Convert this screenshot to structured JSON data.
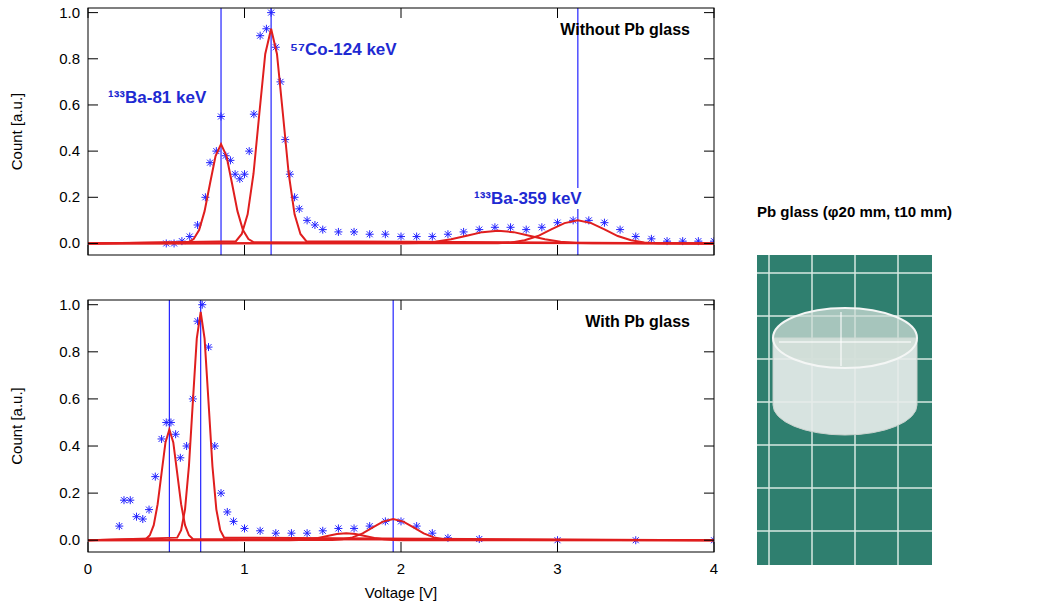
{
  "chart_data": [
    {
      "type": "scatter",
      "title": "Without Pb glass",
      "ylabel": "Count [a.u.]",
      "xlim": [
        0,
        4
      ],
      "ylim": [
        -0.05,
        1.02
      ],
      "xticks": [
        0,
        1,
        2,
        3,
        4
      ],
      "yticks": [
        {
          "value": 0,
          "label": "0.0"
        },
        {
          "value": 0.2,
          "label": "0.2"
        },
        {
          "value": 0.4,
          "label": "0.4"
        },
        {
          "value": 0.6,
          "label": "0.6"
        },
        {
          "value": 0.8,
          "label": "0.8"
        },
        {
          "value": 1,
          "label": "1.0"
        }
      ],
      "tick_labels": "y",
      "annotations": [
        "¹³³Ba-81 keV",
        "⁵⁷Co-124 keV",
        "¹³³Ba-359 keV"
      ],
      "vlines": [
        0.85,
        1.17,
        3.13
      ],
      "series": [
        {
          "type": "scatter",
          "marker": "asterisk",
          "color": "#2323ff",
          "x": [
            0.5,
            0.55,
            0.6,
            0.65,
            0.7,
            0.75,
            0.78,
            0.82,
            0.85,
            0.88,
            0.91,
            0.94,
            0.97,
            1.0,
            1.03,
            1.06,
            1.1,
            1.14,
            1.17,
            1.2,
            1.23,
            1.26,
            1.29,
            1.32,
            1.35,
            1.4,
            1.45,
            1.5,
            1.6,
            1.7,
            1.8,
            1.9,
            2.0,
            2.1,
            2.2,
            2.3,
            2.4,
            2.5,
            2.6,
            2.7,
            2.8,
            2.9,
            3.0,
            3.1,
            3.2,
            3.3,
            3.4,
            3.5,
            3.6,
            3.7,
            3.8,
            3.9,
            4.0
          ],
          "values": [
            0.0,
            0.0,
            0.01,
            0.03,
            0.08,
            0.2,
            0.35,
            0.4,
            0.55,
            0.38,
            0.36,
            0.3,
            0.28,
            0.3,
            0.4,
            0.56,
            0.9,
            0.93,
            1.0,
            0.85,
            0.7,
            0.45,
            0.3,
            0.2,
            0.15,
            0.1,
            0.08,
            0.06,
            0.05,
            0.05,
            0.04,
            0.04,
            0.03,
            0.03,
            0.03,
            0.04,
            0.05,
            0.06,
            0.07,
            0.07,
            0.06,
            0.07,
            0.09,
            0.1,
            0.1,
            0.09,
            0.06,
            0.03,
            0.02,
            0.01,
            0.01,
            0.01,
            0.01
          ]
        },
        {
          "type": "line",
          "line_style": "solid",
          "color": "#e01e1e",
          "x": [
            0,
            0.64,
            0.675,
            0.71,
            0.745,
            0.78,
            0.815,
            0.85,
            0.885,
            0.92,
            0.955,
            0.99,
            1.025,
            1.06,
            4
          ],
          "values": [
            0,
            0.005,
            0.019,
            0.058,
            0.14,
            0.261,
            0.379,
            0.43,
            0.379,
            0.261,
            0.14,
            0.058,
            0.019,
            0.005,
            0
          ]
        },
        {
          "type": "line",
          "line_style": "solid",
          "color": "#e01e1e",
          "x": [
            0,
            0.945,
            0.9825,
            1.02,
            1.0575,
            1.095,
            1.1325,
            1.17,
            1.2075,
            1.245,
            1.2825,
            1.32,
            1.3575,
            1.395,
            4
          ],
          "values": [
            0,
            0.01,
            0.041,
            0.126,
            0.302,
            0.564,
            0.821,
            0.93,
            0.821,
            0.564,
            0.302,
            0.126,
            0.041,
            0.01,
            0
          ]
        },
        {
          "type": "line",
          "line_style": "solid",
          "color": "#e01e1e",
          "x": [
            0,
            2.02,
            2.12,
            2.22,
            2.32,
            2.42,
            2.52,
            2.62,
            2.72,
            2.82,
            2.92,
            3.02,
            3.12,
            3.22,
            4
          ],
          "values": [
            0,
            0.001,
            0.002,
            0.007,
            0.018,
            0.033,
            0.049,
            0.055,
            0.049,
            0.033,
            0.018,
            0.007,
            0.002,
            0.001,
            0
          ]
        },
        {
          "type": "line",
          "line_style": "solid",
          "color": "#e01e1e",
          "x": [
            0,
            2.62,
            2.705,
            2.79,
            2.875,
            2.96,
            3.045,
            3.13,
            3.215,
            3.3,
            3.385,
            3.47,
            3.555,
            3.64,
            4
          ],
          "values": [
            0,
            0.001,
            0.004,
            0.014,
            0.032,
            0.061,
            0.088,
            0.1,
            0.088,
            0.061,
            0.032,
            0.014,
            0.004,
            0.001,
            0
          ]
        }
      ]
    },
    {
      "type": "scatter",
      "title": "With Pb glass",
      "xlabel": "Voltage [V]",
      "ylabel": "Count [a.u.]",
      "xlim": [
        0,
        4
      ],
      "ylim": [
        -0.05,
        1.02
      ],
      "xticks": [
        0,
        1,
        2,
        3,
        4
      ],
      "yticks": [
        {
          "value": 0,
          "label": "0.0"
        },
        {
          "value": 0.2,
          "label": "0.2"
        },
        {
          "value": 0.4,
          "label": "0.4"
        },
        {
          "value": 0.6,
          "label": "0.6"
        },
        {
          "value": 0.8,
          "label": "0.8"
        },
        {
          "value": 1,
          "label": "1.0"
        }
      ],
      "vlines": [
        0.52,
        0.72,
        1.95
      ],
      "series": [
        {
          "type": "scatter",
          "marker": "asterisk",
          "color": "#2323ff",
          "x": [
            0.2,
            0.23,
            0.27,
            0.31,
            0.35,
            0.39,
            0.43,
            0.47,
            0.5,
            0.53,
            0.56,
            0.59,
            0.63,
            0.67,
            0.7,
            0.73,
            0.77,
            0.81,
            0.85,
            0.89,
            0.93,
            1.0,
            1.1,
            1.2,
            1.3,
            1.4,
            1.5,
            1.6,
            1.7,
            1.8,
            1.9,
            2.0,
            2.1,
            2.2,
            2.3,
            2.5,
            3.0,
            3.5,
            4.0
          ],
          "values": [
            0.06,
            0.17,
            0.17,
            0.1,
            0.09,
            0.13,
            0.27,
            0.43,
            0.5,
            0.5,
            0.45,
            0.35,
            0.4,
            0.6,
            0.93,
            1.0,
            0.82,
            0.4,
            0.2,
            0.12,
            0.08,
            0.05,
            0.04,
            0.03,
            0.03,
            0.03,
            0.04,
            0.05,
            0.05,
            0.06,
            0.08,
            0.08,
            0.06,
            0.03,
            0.01,
            0.005,
            0.0,
            0.0,
            0.0
          ]
        },
        {
          "type": "line",
          "line_style": "solid",
          "color": "#e01e1e",
          "x": [
            0,
            0.37,
            0.395,
            0.42,
            0.445,
            0.47,
            0.495,
            0.52,
            0.545,
            0.57,
            0.595,
            0.62,
            0.645,
            0.67,
            4
          ],
          "values": [
            0,
            0.005,
            0.021,
            0.064,
            0.153,
            0.285,
            0.415,
            0.47,
            0.415,
            0.285,
            0.153,
            0.064,
            0.021,
            0.005,
            0
          ]
        },
        {
          "type": "line",
          "line_style": "solid",
          "color": "#e01e1e",
          "x": [
            0,
            0.57,
            0.595,
            0.62,
            0.645,
            0.67,
            0.695,
            0.72,
            0.745,
            0.77,
            0.795,
            0.82,
            0.845,
            0.87,
            4
          ],
          "values": [
            0,
            0.011,
            0.043,
            0.131,
            0.315,
            0.588,
            0.856,
            0.97,
            0.856,
            0.588,
            0.315,
            0.131,
            0.043,
            0.011,
            0
          ]
        },
        {
          "type": "line",
          "line_style": "solid",
          "color": "#e01e1e",
          "x": [
            0,
            1.29,
            1.35,
            1.41,
            1.47,
            1.53,
            1.59,
            1.65,
            1.71,
            1.77,
            1.83,
            1.89,
            1.95,
            2.01,
            4
          ],
          "values": [
            0,
            0,
            0.001,
            0.004,
            0.01,
            0.018,
            0.026,
            0.03,
            0.026,
            0.018,
            0.01,
            0.004,
            0.001,
            0,
            0
          ]
        },
        {
          "type": "line",
          "line_style": "solid",
          "color": "#e01e1e",
          "x": [
            0,
            1.56,
            1.625,
            1.69,
            1.755,
            1.82,
            1.885,
            1.95,
            2.015,
            2.08,
            2.145,
            2.21,
            2.275,
            2.34,
            4
          ],
          "values": [
            0,
            0.001,
            0.004,
            0.012,
            0.029,
            0.055,
            0.079,
            0.09,
            0.079,
            0.055,
            0.029,
            0.012,
            0.004,
            0.001,
            0
          ]
        }
      ]
    }
  ],
  "photo": {
    "caption": "Pb glass (φ20 mm, t10 mm)"
  }
}
